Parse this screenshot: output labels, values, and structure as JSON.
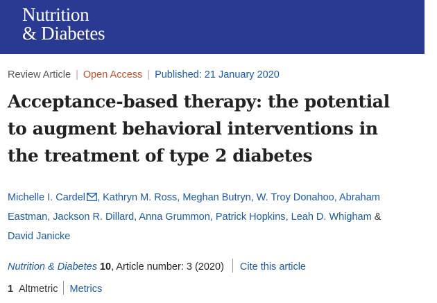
{
  "banner": {
    "logo_line1": "Nutrition",
    "logo_line2": "& Diabetes",
    "background_color": "#2a3991"
  },
  "meta": {
    "article_type": "Review Article",
    "access": "Open Access",
    "published": "Published: 21 January 2020"
  },
  "title_lines": [
    "Acceptance-based therapy: the potential",
    "to augment behavioral interventions in",
    "the treatment of type 2 diabetes"
  ],
  "authors": [
    "Michelle I. Cardel",
    "Kathryn M. Ross",
    "Meghan Butryn",
    "W. Troy Donahoo",
    "Abraham Eastman",
    "Jackson R. Dillard",
    "Anna Grummon",
    "Patrick Hopkins",
    "Leah D. Whigham",
    "David Janicke"
  ],
  "author_split": {
    "abraham_first": "Abraham",
    "abraham_last": "Eastman"
  },
  "authors_ampersand": "&",
  "corresponding_icon": "mail-icon",
  "citation": {
    "journal": "Nutrition & Diabetes",
    "volume": "10",
    "article_number": ", Article number: 3 (2020)",
    "cite_link": "Cite this article"
  },
  "metrics": {
    "altmetric_count": "1",
    "altmetric_label": "Altmetric",
    "metrics_link": "Metrics"
  },
  "colors": {
    "link": "#1a5aa8",
    "open_access": "#c0512a"
  }
}
